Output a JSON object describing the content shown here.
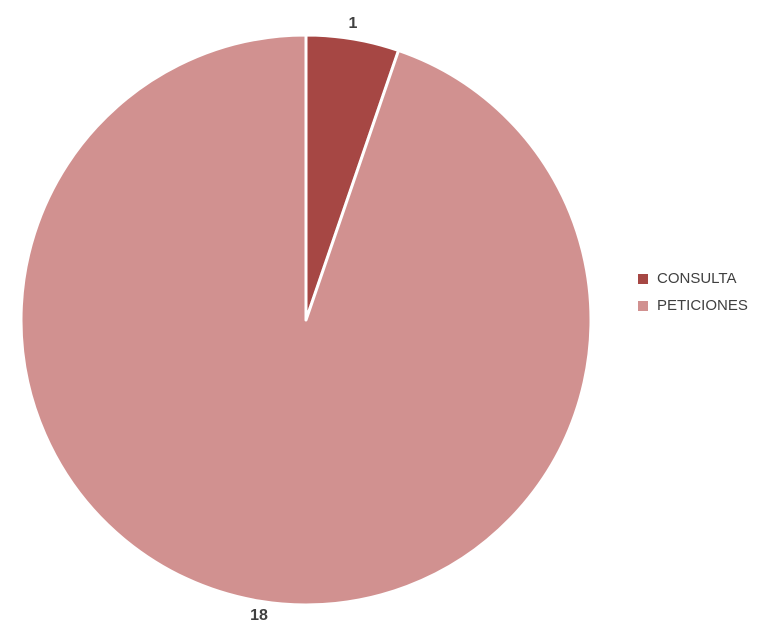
{
  "chart_data": {
    "type": "pie",
    "title": "",
    "categories": [
      "CONSULTA",
      "PETICIONES"
    ],
    "values": [
      1,
      18
    ],
    "colors": [
      "#A64744",
      "#D19190"
    ],
    "data_labels": [
      "1",
      "18"
    ],
    "start_angle_deg": 0,
    "direction": "clockwise",
    "slice_border_color": "#FFFFFF",
    "legend": {
      "position": "right",
      "entries": [
        "CONSULTA",
        "PETICIONES"
      ]
    }
  }
}
